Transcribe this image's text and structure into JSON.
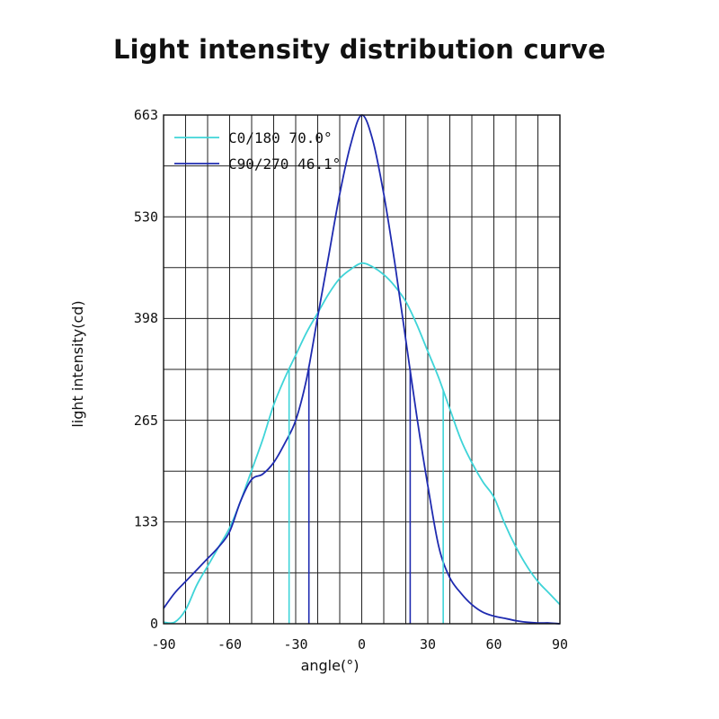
{
  "chart_data": {
    "type": "line",
    "title": "Light intensity distribution curve",
    "xlabel": "angle(°)",
    "ylabel": "light intensity(cd)",
    "xlim": [
      -90,
      90
    ],
    "ylim": [
      0,
      663
    ],
    "x_ticks": [
      -90,
      -60,
      -30,
      0,
      30,
      60,
      90
    ],
    "y_ticks": [
      0,
      133,
      265,
      398,
      530,
      663
    ],
    "grid": true,
    "legend_position": "top-left",
    "series": [
      {
        "name": "C0/180 70.0°",
        "color": "#3fd4d8",
        "beam_angle_markers": [
          -33,
          37
        ],
        "x": [
          -90,
          -85,
          -80,
          -75,
          -70,
          -65,
          -60,
          -55,
          -50,
          -45,
          -40,
          -35,
          -30,
          -25,
          -20,
          -15,
          -10,
          -5,
          0,
          5,
          10,
          15,
          20,
          25,
          30,
          35,
          40,
          45,
          50,
          55,
          60,
          65,
          70,
          75,
          80,
          85,
          90
        ],
        "values": [
          2,
          2,
          18,
          50,
          75,
          100,
          125,
          160,
          200,
          240,
          285,
          320,
          350,
          380,
          405,
          430,
          450,
          462,
          470,
          465,
          455,
          440,
          420,
          390,
          355,
          320,
          280,
          240,
          210,
          185,
          165,
          130,
          100,
          75,
          55,
          40,
          25
        ]
      },
      {
        "name": "C90/270 46.1°",
        "color": "#1f2bb0",
        "beam_angle_markers": [
          -24,
          22
        ],
        "x": [
          -90,
          -85,
          -80,
          -75,
          -70,
          -65,
          -60,
          -55,
          -50,
          -45,
          -40,
          -35,
          -30,
          -25,
          -20,
          -15,
          -10,
          -5,
          0,
          5,
          10,
          15,
          20,
          25,
          30,
          35,
          40,
          45,
          50,
          55,
          60,
          65,
          70,
          75,
          80,
          85,
          90
        ],
        "values": [
          20,
          40,
          55,
          70,
          85,
          100,
          120,
          160,
          188,
          195,
          210,
          235,
          265,
          320,
          400,
          480,
          560,
          625,
          663,
          630,
          560,
          470,
          370,
          270,
          180,
          100,
          60,
          40,
          25,
          15,
          10,
          7,
          4,
          2,
          1,
          1,
          0
        ]
      }
    ]
  }
}
